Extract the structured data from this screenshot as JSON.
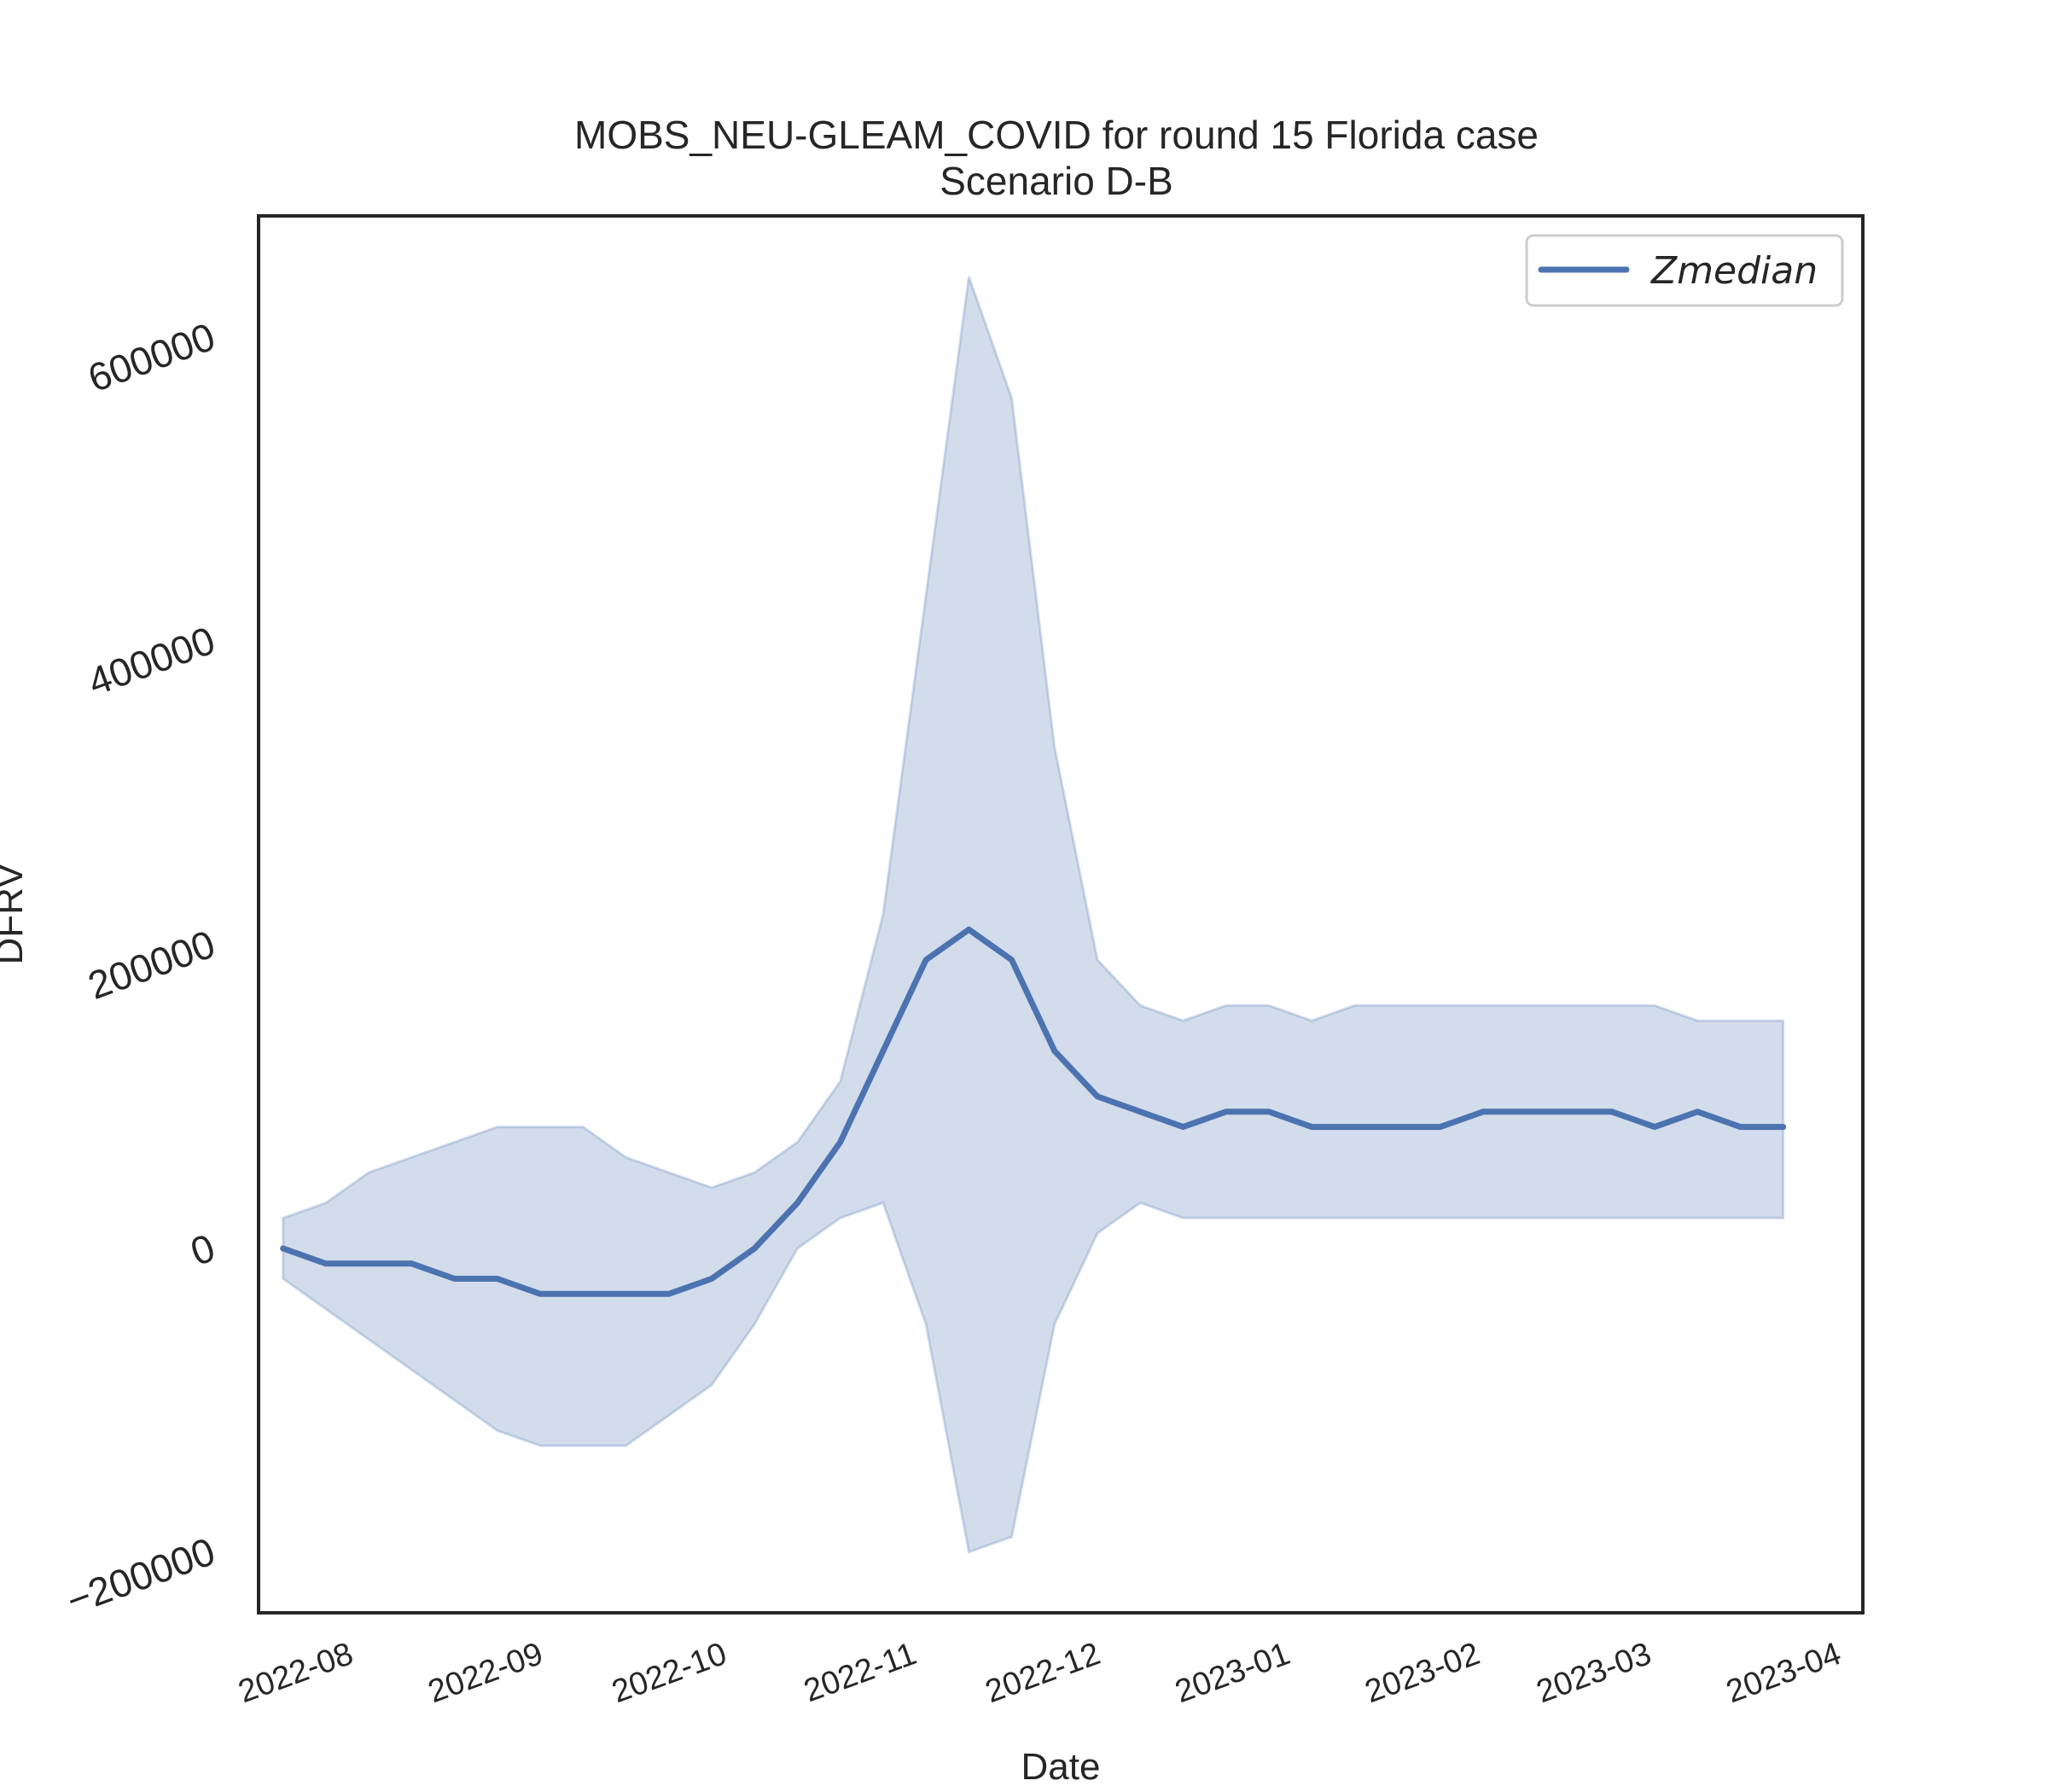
{
  "chart_data": {
    "type": "line",
    "title": "MOBS_NEU-GLEAM_COVID for round 15 Florida case",
    "subtitle": "Scenario D-B",
    "xlabel": "Date",
    "ylabel": "DFRV",
    "xlim": [
      "2022-07-19",
      "2023-04-07"
    ],
    "ylim": [
      -240000,
      680000
    ],
    "x_ticks": [
      "2022-08",
      "2022-09",
      "2022-10",
      "2022-11",
      "2022-12",
      "2023-01",
      "2023-02",
      "2023-03",
      "2023-04"
    ],
    "y_ticks": [
      -200000,
      0,
      200000,
      400000,
      600000
    ],
    "grid": false,
    "legend_position": "top-right",
    "colors": {
      "line": "#4c72b0",
      "band": "#4c72b0"
    },
    "x": [
      "2022-07-23",
      "2022-07-30",
      "2022-08-06",
      "2022-08-13",
      "2022-08-20",
      "2022-08-27",
      "2022-09-03",
      "2022-09-10",
      "2022-09-17",
      "2022-09-24",
      "2022-10-01",
      "2022-10-08",
      "2022-10-15",
      "2022-10-22",
      "2022-10-29",
      "2022-11-05",
      "2022-11-12",
      "2022-11-19",
      "2022-11-26",
      "2022-12-03",
      "2022-12-10",
      "2022-12-17",
      "2022-12-24",
      "2022-12-31",
      "2023-01-07",
      "2023-01-14",
      "2023-01-21",
      "2023-01-28",
      "2023-02-04",
      "2023-02-11",
      "2023-02-18",
      "2023-02-25",
      "2023-03-04",
      "2023-03-11",
      "2023-03-18",
      "2023-03-25"
    ],
    "series": [
      {
        "name": "Zmedian",
        "values": [
          0,
          -10000,
          -10000,
          -10000,
          -20000,
          -20000,
          -30000,
          -30000,
          -30000,
          -30000,
          -20000,
          0,
          30000,
          70000,
          130000,
          190000,
          210000,
          190000,
          130000,
          100000,
          90000,
          80000,
          90000,
          90000,
          80000,
          80000,
          80000,
          80000,
          90000,
          90000,
          90000,
          90000,
          80000,
          90000,
          80000,
          80000
        ]
      }
    ],
    "band": {
      "lower": [
        -20000,
        -40000,
        -60000,
        -80000,
        -100000,
        -120000,
        -130000,
        -130000,
        -130000,
        -110000,
        -90000,
        -50000,
        0,
        20000,
        30000,
        -50000,
        -200000,
        -190000,
        -50000,
        10000,
        30000,
        20000,
        20000,
        20000,
        20000,
        20000,
        20000,
        20000,
        20000,
        20000,
        20000,
        20000,
        20000,
        20000,
        20000,
        20000
      ],
      "upper": [
        20000,
        30000,
        50000,
        60000,
        70000,
        80000,
        80000,
        80000,
        60000,
        50000,
        40000,
        50000,
        70000,
        110000,
        220000,
        430000,
        640000,
        560000,
        330000,
        190000,
        160000,
        150000,
        160000,
        160000,
        150000,
        160000,
        160000,
        160000,
        160000,
        160000,
        160000,
        160000,
        160000,
        150000,
        150000,
        150000
      ]
    }
  }
}
